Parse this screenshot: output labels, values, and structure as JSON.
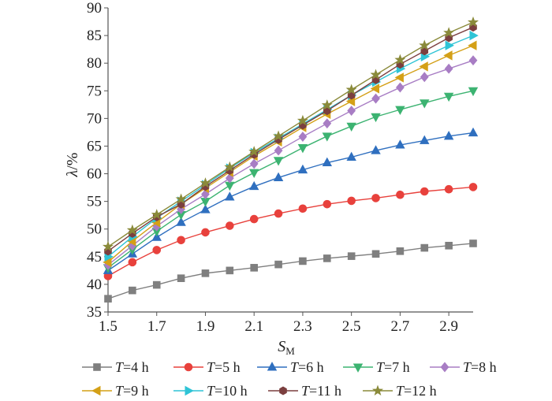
{
  "chart_data": {
    "type": "line",
    "title": "",
    "xlabel": {
      "symbol": "S",
      "sub": "M"
    },
    "ylabel": {
      "symbol": "λ",
      "unit": "/%"
    },
    "xlim": [
      1.5,
      3.0
    ],
    "ylim": [
      35,
      90
    ],
    "xticks": [
      "1.5",
      "1.7",
      "1.9",
      "2.1",
      "2.3",
      "2.5",
      "2.7",
      "2.9"
    ],
    "yticks": [
      "35",
      "40",
      "45",
      "50",
      "55",
      "60",
      "65",
      "70",
      "75",
      "80",
      "85",
      "90"
    ],
    "grid": false,
    "legend": "bottom",
    "x": [
      1.5,
      1.6,
      1.7,
      1.8,
      1.9,
      2.0,
      2.1,
      2.2,
      2.3,
      2.4,
      2.5,
      2.6,
      2.7,
      2.8,
      2.9,
      3.0
    ],
    "series": [
      {
        "name": {
          "var": "T",
          "rest": "=4 h"
        },
        "color": "#7f7f7f",
        "marker": "square",
        "values": [
          37.4,
          38.9,
          39.9,
          41.1,
          42.0,
          42.5,
          43.0,
          43.6,
          44.2,
          44.7,
          45.1,
          45.5,
          46.0,
          46.6,
          47.0,
          47.4
        ]
      },
      {
        "name": {
          "var": "T",
          "rest": "=5 h"
        },
        "color": "#e8413c",
        "marker": "circle",
        "values": [
          41.5,
          44.0,
          46.2,
          48.0,
          49.4,
          50.6,
          51.8,
          52.8,
          53.7,
          54.5,
          55.1,
          55.6,
          56.2,
          56.8,
          57.2,
          57.6
        ]
      },
      {
        "name": {
          "var": "T",
          "rest": "=6 h"
        },
        "color": "#2f6fbf",
        "marker": "triangle-up",
        "values": [
          42.5,
          45.5,
          48.5,
          51.2,
          53.5,
          55.8,
          57.7,
          59.3,
          60.7,
          62.0,
          63.0,
          64.2,
          65.2,
          66.0,
          66.8,
          67.4
        ]
      },
      {
        "name": {
          "var": "T",
          "rest": "=7 h"
        },
        "color": "#3cb371",
        "marker": "triangle-down",
        "values": [
          43.0,
          46.3,
          49.6,
          52.6,
          55.0,
          57.9,
          60.2,
          62.4,
          64.7,
          66.8,
          68.6,
          70.3,
          71.6,
          72.8,
          74.0,
          75.0
        ]
      },
      {
        "name": {
          "var": "T",
          "rest": "=8 h"
        },
        "color": "#a87dc4",
        "marker": "diamond",
        "values": [
          43.5,
          47.0,
          50.5,
          53.6,
          56.3,
          59.2,
          61.8,
          64.2,
          66.7,
          69.1,
          71.4,
          73.6,
          75.6,
          77.5,
          79.0,
          80.5
        ]
      },
      {
        "name": {
          "var": "T",
          "rest": "=9 h"
        },
        "color": "#d4a017",
        "marker": "triangle-left",
        "values": [
          44.0,
          47.8,
          51.2,
          54.5,
          57.4,
          60.3,
          63.2,
          65.8,
          68.4,
          70.8,
          73.1,
          75.4,
          77.4,
          79.4,
          81.4,
          83.2
        ]
      },
      {
        "name": {
          "var": "T",
          "rest": "=10 h"
        },
        "color": "#2ec4d6",
        "marker": "triangle-right",
        "values": [
          45.0,
          48.6,
          52.0,
          55.0,
          58.0,
          61.0,
          63.8,
          66.4,
          69.0,
          71.6,
          74.2,
          76.6,
          79.0,
          81.2,
          83.2,
          85.0
        ]
      },
      {
        "name": {
          "var": "T",
          "rest": "=11 h"
        },
        "color": "#7b3f3f",
        "marker": "hexagon",
        "values": [
          46.0,
          49.2,
          52.2,
          54.5,
          57.7,
          60.6,
          63.5,
          66.2,
          68.8,
          71.4,
          74.2,
          77.0,
          79.8,
          82.2,
          84.6,
          86.5
        ]
      },
      {
        "name": {
          "var": "T",
          "rest": "=12 h"
        },
        "color": "#8a8a3a",
        "marker": "star",
        "values": [
          46.8,
          49.8,
          52.6,
          55.4,
          58.3,
          61.2,
          64.0,
          66.8,
          69.6,
          72.4,
          75.2,
          77.9,
          80.6,
          83.2,
          85.5,
          87.4
        ]
      }
    ]
  }
}
